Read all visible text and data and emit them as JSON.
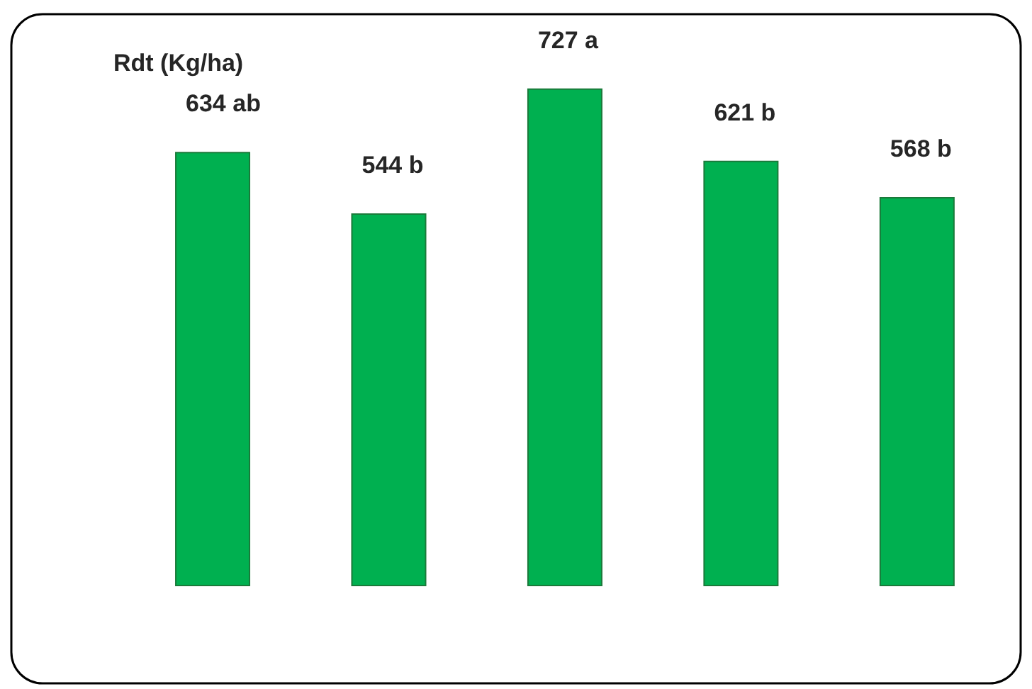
{
  "chart_data": {
    "type": "bar",
    "title": "Rdt (Kg/ha)",
    "categories": [
      null,
      null,
      null,
      null,
      null
    ],
    "values": [
      634,
      544,
      727,
      621,
      568
    ],
    "value_labels": [
      "634 ab",
      "544 b",
      "727 a",
      "621 b",
      "568 b"
    ],
    "color": "#00b050"
  }
}
